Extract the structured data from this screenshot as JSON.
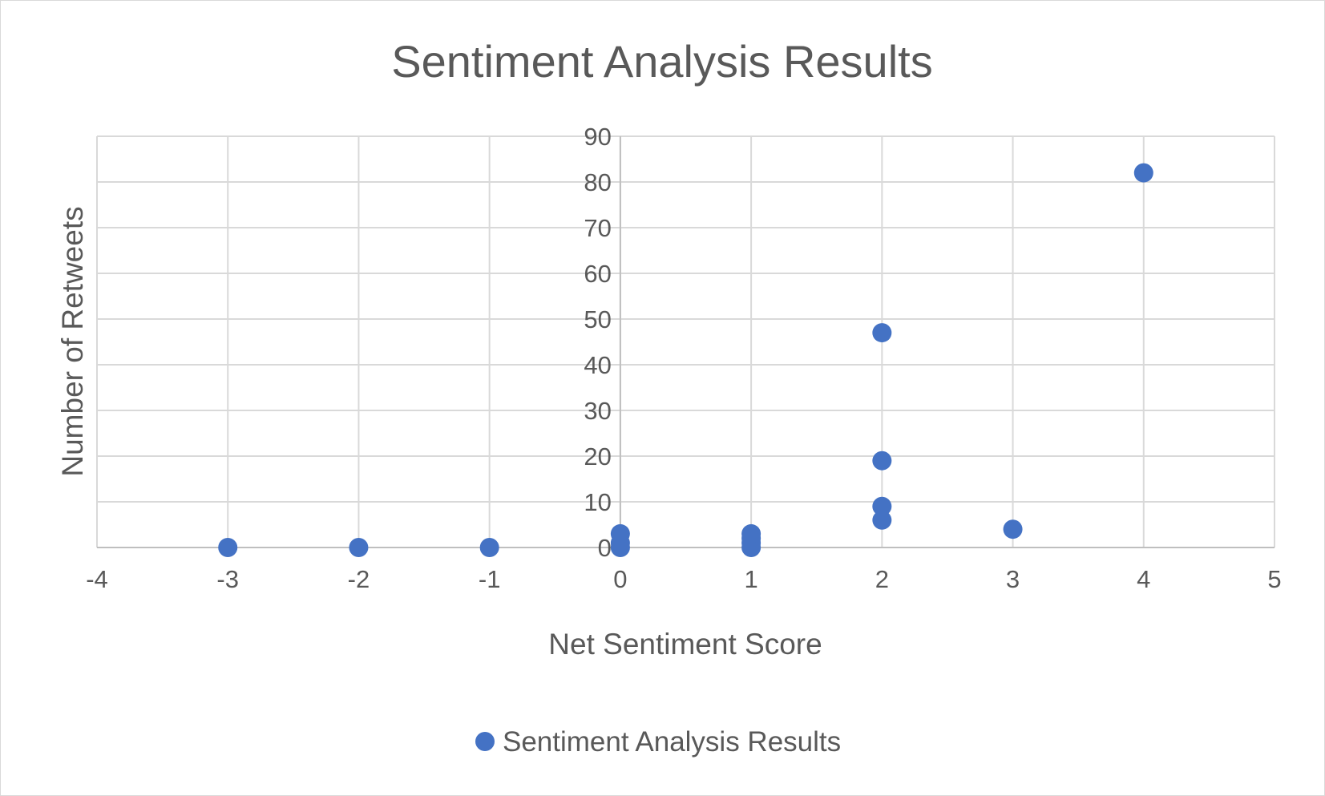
{
  "chart_data": {
    "type": "scatter",
    "title": "Sentiment Analysis Results",
    "xlabel": "Net Sentiment Score",
    "ylabel": "Number of Retweets",
    "xlim": [
      -4,
      5
    ],
    "ylim": [
      0,
      90
    ],
    "xticks": [
      -4,
      -3,
      -2,
      -1,
      0,
      1,
      2,
      3,
      4,
      5
    ],
    "yticks": [
      0,
      10,
      20,
      30,
      40,
      50,
      60,
      70,
      80,
      90
    ],
    "grid": true,
    "legend_position": "bottom",
    "series": [
      {
        "name": "Sentiment Analysis Results",
        "color": "#4472C4",
        "points": [
          {
            "x": -3,
            "y": 0
          },
          {
            "x": -2,
            "y": 0
          },
          {
            "x": -1,
            "y": 0
          },
          {
            "x": 0,
            "y": 0
          },
          {
            "x": 0,
            "y": 1
          },
          {
            "x": 0,
            "y": 3
          },
          {
            "x": 1,
            "y": 0
          },
          {
            "x": 1,
            "y": 1
          },
          {
            "x": 1,
            "y": 2
          },
          {
            "x": 1,
            "y": 3
          },
          {
            "x": 2,
            "y": 6
          },
          {
            "x": 2,
            "y": 9
          },
          {
            "x": 2,
            "y": 19
          },
          {
            "x": 2,
            "y": 47
          },
          {
            "x": 3,
            "y": 4
          },
          {
            "x": 4,
            "y": 82
          }
        ]
      }
    ]
  }
}
